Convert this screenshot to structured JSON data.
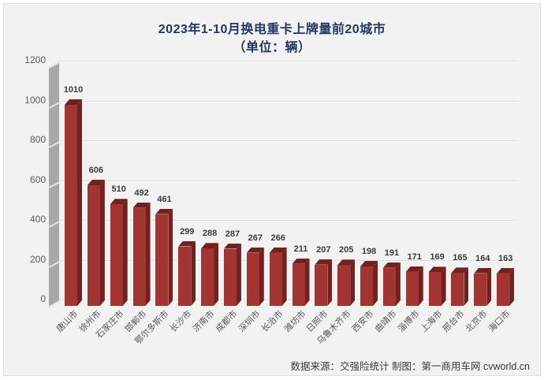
{
  "title": {
    "line1": "2023年1-10月换电重卡上牌量前20城市",
    "line2": "（单位：辆）"
  },
  "source": "数据来源：交强险统计  制图：第一商用车网 cvworld.cn",
  "chart_data": {
    "type": "bar",
    "title": "2023年1-10月换电重卡上牌量前20城市（单位：辆）",
    "categories": [
      "唐山市",
      "徐州市",
      "石家庄市",
      "邯郸市",
      "鄂尔多斯市",
      "长沙市",
      "济南市",
      "成都市",
      "深圳市",
      "长治市",
      "潍坊市",
      "日照市",
      "乌鲁木齐市",
      "西安市",
      "曲靖市",
      "淄博市",
      "上海市",
      "邢台市",
      "北京市",
      "海口市"
    ],
    "values": [
      1010,
      606,
      510,
      492,
      461,
      299,
      288,
      287,
      267,
      266,
      211,
      207,
      205,
      198,
      191,
      171,
      169,
      165,
      164,
      163
    ],
    "xlabel": "",
    "ylabel": "",
    "ylim": [
      0,
      1200
    ],
    "yticks": [
      0,
      200,
      400,
      600,
      800,
      1000,
      1200
    ],
    "grid": true,
    "legend": false,
    "style": "3d-bar",
    "colors": {
      "bar_front": "#a23431",
      "bar_side": "#73211e",
      "wall": "#a8a8a8",
      "background": "#f2f2f2",
      "title_text": "#1f3864",
      "axis_text": "#595959",
      "value_text": "#3b3b3b"
    }
  }
}
